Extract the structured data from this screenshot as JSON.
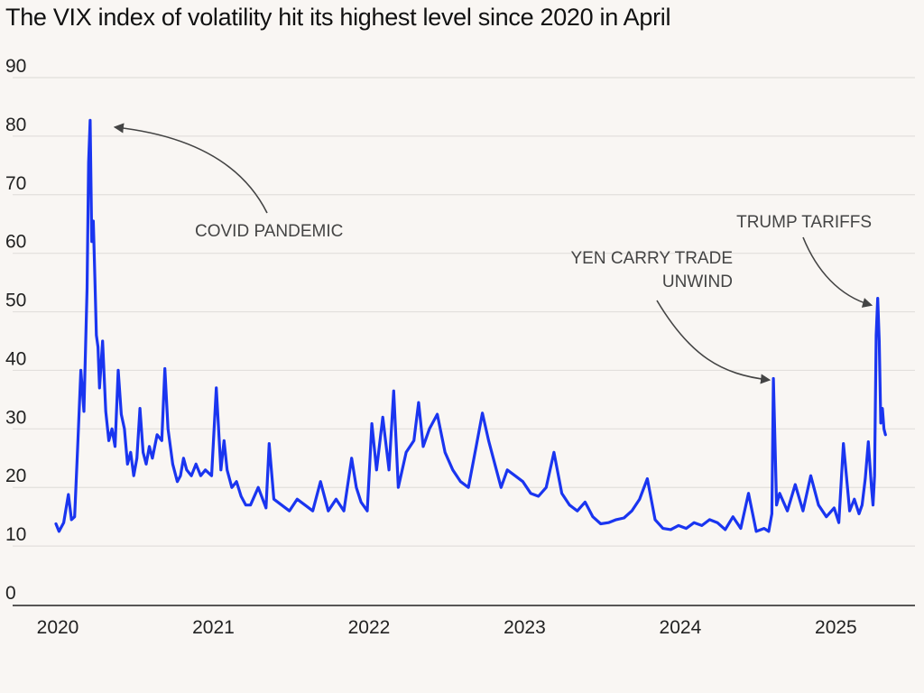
{
  "title": "The VIX index of volatility hit its highest level since 2020 in April",
  "chart_data": {
    "type": "line",
    "title": "The VIX index of volatility hit its highest level since 2020 in April",
    "xlabel": "",
    "ylabel": "",
    "ylim": [
      0,
      90
    ],
    "xlim": [
      2020.0,
      2025.45
    ],
    "yticks": [
      "0",
      "10",
      "20",
      "30",
      "40",
      "50",
      "60",
      "70",
      "80",
      "90"
    ],
    "xticks": [
      "2020",
      "2021",
      "2022",
      "2023",
      "2024",
      "2025"
    ],
    "grid": true,
    "colors": {
      "line": "#1a35f0",
      "grid": "#e2dfdc",
      "axis": "#222222",
      "annotation": "#444444"
    },
    "series": [
      {
        "x": [
          2020.0,
          2020.02,
          2020.05,
          2020.08,
          2020.1,
          2020.12,
          2020.14,
          2020.16,
          2020.18,
          2020.2,
          2020.21,
          2020.22,
          2020.23,
          2020.24,
          2020.25,
          2020.26,
          2020.27,
          2020.28,
          2020.3,
          2020.32,
          2020.34,
          2020.36,
          2020.38,
          2020.4,
          2020.42,
          2020.44,
          2020.46,
          2020.48,
          2020.5,
          2020.52,
          2020.54,
          2020.56,
          2020.58,
          2020.6,
          2020.62,
          2020.65,
          2020.68,
          2020.7,
          2020.72,
          2020.75,
          2020.78,
          2020.8,
          2020.82,
          2020.84,
          2020.87,
          2020.9,
          2020.93,
          2020.96,
          2021.0,
          2021.03,
          2021.06,
          2021.08,
          2021.1,
          2021.13,
          2021.16,
          2021.19,
          2021.22,
          2021.25,
          2021.3,
          2021.35,
          2021.37,
          2021.4,
          2021.45,
          2021.5,
          2021.55,
          2021.6,
          2021.65,
          2021.7,
          2021.75,
          2021.8,
          2021.85,
          2021.9,
          2021.93,
          2021.96,
          2022.0,
          2022.03,
          2022.06,
          2022.1,
          2022.14,
          2022.17,
          2022.2,
          2022.25,
          2022.3,
          2022.33,
          2022.36,
          2022.4,
          2022.45,
          2022.5,
          2022.55,
          2022.6,
          2022.65,
          2022.7,
          2022.74,
          2022.78,
          2022.82,
          2022.86,
          2022.9,
          2022.95,
          2023.0,
          2023.05,
          2023.1,
          2023.15,
          2023.2,
          2023.25,
          2023.3,
          2023.35,
          2023.4,
          2023.45,
          2023.5,
          2023.55,
          2023.6,
          2023.65,
          2023.7,
          2023.75,
          2023.8,
          2023.85,
          2023.9,
          2023.95,
          2024.0,
          2024.05,
          2024.1,
          2024.15,
          2024.2,
          2024.25,
          2024.3,
          2024.35,
          2024.4,
          2024.45,
          2024.5,
          2024.55,
          2024.58,
          2024.6,
          2024.61,
          2024.63,
          2024.65,
          2024.7,
          2024.75,
          2024.8,
          2024.85,
          2024.9,
          2024.95,
          2025.0,
          2025.03,
          2025.06,
          2025.1,
          2025.13,
          2025.16,
          2025.18,
          2025.2,
          2025.22,
          2025.24,
          2025.25,
          2025.26,
          2025.27,
          2025.28,
          2025.29,
          2025.3,
          2025.31,
          2025.32,
          2025.33
        ],
        "values": [
          13.8,
          12.5,
          14.0,
          18.8,
          14.5,
          15.0,
          27.0,
          40.0,
          33.0,
          54.0,
          75.5,
          82.7,
          62.0,
          65.5,
          56.0,
          46.0,
          44.0,
          37.0,
          45.0,
          33.0,
          28.0,
          30.0,
          27.0,
          40.0,
          32.5,
          30.0,
          24.0,
          26.0,
          22.0,
          25.0,
          33.5,
          26.0,
          24.0,
          27.0,
          25.0,
          29.0,
          28.0,
          40.3,
          30.0,
          24.0,
          21.0,
          22.0,
          25.0,
          23.0,
          22.0,
          24.0,
          22.0,
          23.0,
          22.0,
          37.0,
          23.0,
          28.0,
          23.0,
          20.0,
          21.0,
          18.5,
          17.0,
          17.0,
          20.0,
          16.5,
          27.5,
          18.0,
          17.0,
          16.0,
          18.0,
          17.0,
          16.0,
          21.0,
          16.0,
          18.0,
          16.0,
          25.0,
          20.0,
          17.5,
          16.0,
          30.9,
          23.0,
          32.0,
          23.0,
          36.5,
          20.0,
          26.0,
          28.0,
          34.5,
          27.0,
          30.0,
          32.5,
          26.0,
          23.0,
          21.0,
          20.0,
          27.0,
          32.7,
          28.0,
          24.0,
          20.0,
          23.0,
          22.0,
          21.0,
          19.0,
          18.5,
          20.0,
          26.0,
          19.0,
          17.0,
          16.0,
          17.5,
          15.0,
          13.8,
          14.0,
          14.5,
          14.8,
          16.0,
          18.0,
          21.5,
          14.5,
          13.0,
          12.8,
          13.5,
          13.0,
          14.0,
          13.5,
          14.5,
          14.0,
          12.8,
          15.0,
          13.0,
          19.0,
          12.5,
          13.0,
          12.5,
          15.5,
          38.6,
          17.0,
          19.0,
          16.0,
          20.5,
          16.0,
          22.0,
          17.0,
          15.0,
          16.5,
          14.0,
          27.5,
          16.0,
          18.0,
          15.5,
          17.0,
          21.5,
          27.8,
          20.0,
          17.0,
          22.0,
          46.0,
          52.3,
          45.0,
          31.0,
          33.5,
          30.0,
          29.0
        ]
      }
    ],
    "annotations": [
      {
        "lines": [
          "COVID PANDEMIC"
        ],
        "x": 2020.23,
        "y": 82.5
      },
      {
        "lines": [
          "YEN CARRY TRADE",
          "UNWIND"
        ],
        "x": 2024.6,
        "y": 38.5
      },
      {
        "lines": [
          "TRUMP TARIFFS"
        ],
        "x": 2025.27,
        "y": 50.5
      }
    ]
  }
}
